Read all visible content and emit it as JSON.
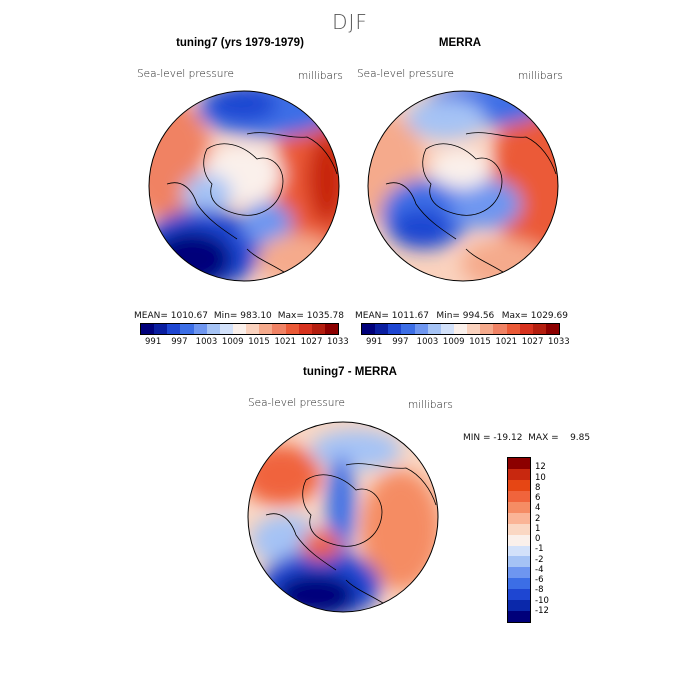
{
  "season": "DJF",
  "panel1": {
    "title": "tuning7 (yrs 1979-1979)",
    "variable": "Sea-level pressure",
    "units": "millibars",
    "stats": {
      "mean": "MEAN= 1010.67",
      "min": "Min= 983.10",
      "max": "Max= 1035.78"
    }
  },
  "panel2": {
    "title": "MERRA",
    "variable": "Sea-level pressure",
    "units": "millibars",
    "stats": {
      "mean": "MEAN= 1011.67",
      "min": "Min= 994.56",
      "max": "Max= 1029.69"
    }
  },
  "panel3": {
    "title": "tuning7 - MERRA",
    "variable": "Sea-level pressure",
    "units": "millibars",
    "minmax": "MIN = -19.12  MAX =    9.85"
  },
  "colorbar_top": {
    "labels": [
      "991",
      "997",
      "1003",
      "1009",
      "1015",
      "1021",
      "1027",
      "1033"
    ],
    "colors": [
      "#00007a",
      "#0a1ea0",
      "#1e46d2",
      "#3c6ee6",
      "#6e96f0",
      "#a5c3f5",
      "#d2e1fa",
      "#faf0eb",
      "#fad2be",
      "#f5aa8c",
      "#f08264",
      "#eb5a37",
      "#d7321e",
      "#b41e0f",
      "#8c0000"
    ]
  },
  "colorbar_diff": {
    "labels": [
      "12",
      "10",
      "8",
      "6",
      "4",
      "2",
      "1",
      "0",
      "-1",
      "-2",
      "-4",
      "-6",
      "-8",
      "-10",
      "-12"
    ],
    "colors": [
      "#8c0000",
      "#c8280f",
      "#e64614",
      "#f0643c",
      "#f58c64",
      "#fab496",
      "#fad7c3",
      "#faf0eb",
      "#d2e1fa",
      "#a5c3f5",
      "#6e96f0",
      "#3c6ee6",
      "#1e46d2",
      "#0a28aa",
      "#00007a"
    ]
  }
}
